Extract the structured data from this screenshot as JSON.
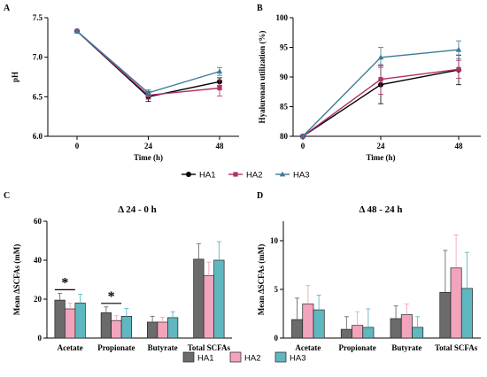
{
  "chart_data": [
    {
      "panel": "A",
      "type": "line",
      "x": [
        0,
        24,
        48
      ],
      "xlabel": "Time (h)",
      "ylabel": "pH",
      "ylim": [
        6.0,
        7.5
      ],
      "yticks": [
        "6.0",
        "6.5",
        "7.0",
        "7.5"
      ],
      "xticks": [
        "0",
        "24",
        "48"
      ],
      "series": [
        {
          "name": "HA1",
          "values": [
            7.33,
            6.5,
            6.69
          ],
          "err": [
            0.0,
            0.06,
            0.05
          ],
          "color": "#000000",
          "marker": "circle"
        },
        {
          "name": "HA2",
          "values": [
            7.33,
            6.52,
            6.61
          ],
          "err": [
            0.0,
            0.05,
            0.1
          ],
          "color": "#b03068",
          "marker": "square"
        },
        {
          "name": "HA3",
          "values": [
            7.33,
            6.55,
            6.82
          ],
          "err": [
            0.0,
            0.04,
            0.05
          ],
          "color": "#3a7b98",
          "marker": "triangle"
        }
      ]
    },
    {
      "panel": "B",
      "type": "line",
      "x": [
        0,
        24,
        48
      ],
      "xlabel": "Time (h)",
      "ylabel": "Hyaluronan utilization (%)",
      "ylim": [
        80,
        100
      ],
      "yticks": [
        "80",
        "85",
        "90",
        "95",
        "100"
      ],
      "xticks": [
        "0",
        "24",
        "48"
      ],
      "series": [
        {
          "name": "HA1",
          "values": [
            80,
            88.7,
            91.2
          ],
          "err": [
            0,
            3.2,
            2.5
          ],
          "color": "#000000",
          "marker": "circle"
        },
        {
          "name": "HA2",
          "values": [
            80,
            89.6,
            91.3
          ],
          "err": [
            0,
            2.5,
            1.5
          ],
          "color": "#b03068",
          "marker": "square"
        },
        {
          "name": "HA3",
          "values": [
            80,
            93.3,
            94.6
          ],
          "err": [
            0,
            1.7,
            1.5
          ],
          "color": "#3a7b98",
          "marker": "triangle"
        }
      ]
    },
    {
      "panel": "C",
      "type": "bar",
      "title": "Δ 24 - 0 h",
      "categories": [
        "Acetate",
        "Propionate",
        "Butyrate",
        "Total SCFAs"
      ],
      "ylabel": "Mean ΔSCFAs (mM)",
      "ylim": [
        0,
        60
      ],
      "yticks": [
        "0",
        "20",
        "40",
        "60"
      ],
      "series": [
        {
          "name": "HA1",
          "values": [
            19.5,
            13.0,
            8.2,
            40.5
          ],
          "err": [
            3.5,
            3.0,
            3.0,
            8.0
          ]
        },
        {
          "name": "HA2",
          "values": [
            15.0,
            9.0,
            8.2,
            32.0
          ],
          "err": [
            3.0,
            2.5,
            2.5,
            7.0
          ]
        },
        {
          "name": "HA3",
          "values": [
            18.0,
            11.2,
            10.5,
            40.0
          ],
          "err": [
            4.5,
            4.0,
            3.0,
            9.5
          ]
        }
      ],
      "significance": [
        {
          "category": "Acetate",
          "label": "*"
        },
        {
          "category": "Propionate",
          "label": "*"
        }
      ]
    },
    {
      "panel": "D",
      "type": "bar",
      "title": "Δ 48 - 24 h",
      "categories": [
        "Acetate",
        "Propionate",
        "Butyrate",
        "Total SCFAs"
      ],
      "ylabel": "Mean ΔSCFAs (mM)",
      "ylim": [
        0,
        12
      ],
      "yticks": [
        "0",
        "5",
        "10"
      ],
      "series": [
        {
          "name": "HA1",
          "values": [
            1.9,
            0.9,
            2.0,
            4.7
          ],
          "err": [
            2.2,
            1.3,
            1.3,
            4.3
          ]
        },
        {
          "name": "HA2",
          "values": [
            3.5,
            1.3,
            2.4,
            7.2
          ],
          "err": [
            1.9,
            1.4,
            1.1,
            3.4
          ]
        },
        {
          "name": "HA3",
          "values": [
            2.9,
            1.1,
            1.1,
            5.1
          ],
          "err": [
            1.5,
            1.9,
            1.1,
            3.7
          ]
        }
      ]
    }
  ],
  "panel_labels": [
    "A",
    "B",
    "C",
    "D"
  ],
  "line_legend": [
    {
      "name": "HA1",
      "color": "#000000",
      "marker": "circle"
    },
    {
      "name": "HA2",
      "color": "#b03068",
      "marker": "square"
    },
    {
      "name": "HA3",
      "color": "#3a7b98",
      "marker": "triangle"
    }
  ],
  "bar_legend": [
    {
      "name": "HA1",
      "color": "#6b6b6b"
    },
    {
      "name": "HA2",
      "color": "#f2a4bd"
    },
    {
      "name": "HA3",
      "color": "#5fb8c0"
    }
  ],
  "bar_colors": [
    "#6b6b6b",
    "#f2a4bd",
    "#5fb8c0"
  ]
}
